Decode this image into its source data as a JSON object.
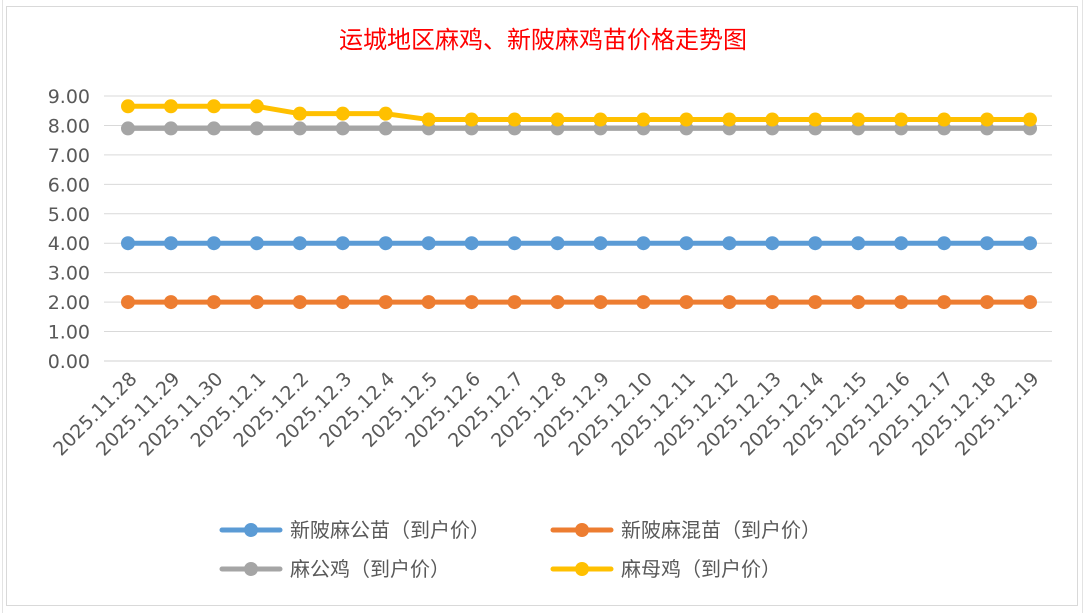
{
  "chart_data": {
    "type": "line",
    "title": "运城地区麻鸡、新陂麻鸡苗价格走势图",
    "xlabel": "",
    "ylabel": "",
    "ylim": [
      0,
      9
    ],
    "y_ticks": [
      "0.00",
      "1.00",
      "2.00",
      "3.00",
      "4.00",
      "5.00",
      "6.00",
      "7.00",
      "8.00",
      "9.00"
    ],
    "grid": true,
    "legend_position": "bottom",
    "categories": [
      "2025.11.28",
      "2025.11.29",
      "2025.11.30",
      "2025.12.1",
      "2025.12.2",
      "2025.12.3",
      "2025.12.4",
      "2025.12.5",
      "2025.12.6",
      "2025.12.7",
      "2025.12.8",
      "2025.12.9",
      "2025.12.10",
      "2025.12.11",
      "2025.12.12",
      "2025.12.13",
      "2025.12.14",
      "2025.12.15",
      "2025.12.16",
      "2025.12.17",
      "2025.12.18",
      "2025.12.19"
    ],
    "series": [
      {
        "name": "新陂麻公苗（到户价）",
        "color": "#5b9bd5",
        "values": [
          4.0,
          4.0,
          4.0,
          4.0,
          4.0,
          4.0,
          4.0,
          4.0,
          4.0,
          4.0,
          4.0,
          4.0,
          4.0,
          4.0,
          4.0,
          4.0,
          4.0,
          4.0,
          4.0,
          4.0,
          4.0,
          4.0
        ]
      },
      {
        "name": "新陂麻混苗（到户价）",
        "color": "#ed7d31",
        "values": [
          2.0,
          2.0,
          2.0,
          2.0,
          2.0,
          2.0,
          2.0,
          2.0,
          2.0,
          2.0,
          2.0,
          2.0,
          2.0,
          2.0,
          2.0,
          2.0,
          2.0,
          2.0,
          2.0,
          2.0,
          2.0,
          2.0
        ]
      },
      {
        "name": "麻公鸡（到户价）",
        "color": "#a5a5a5",
        "values": [
          7.9,
          7.9,
          7.9,
          7.9,
          7.9,
          7.9,
          7.9,
          7.9,
          7.9,
          7.9,
          7.9,
          7.9,
          7.9,
          7.9,
          7.9,
          7.9,
          7.9,
          7.9,
          7.9,
          7.9,
          7.9,
          7.9
        ]
      },
      {
        "name": "麻母鸡（到户价）",
        "color": "#ffc000",
        "values": [
          8.65,
          8.65,
          8.65,
          8.65,
          8.4,
          8.4,
          8.4,
          8.2,
          8.2,
          8.2,
          8.2,
          8.2,
          8.2,
          8.2,
          8.2,
          8.2,
          8.2,
          8.2,
          8.2,
          8.2,
          8.2,
          8.2
        ]
      }
    ]
  }
}
